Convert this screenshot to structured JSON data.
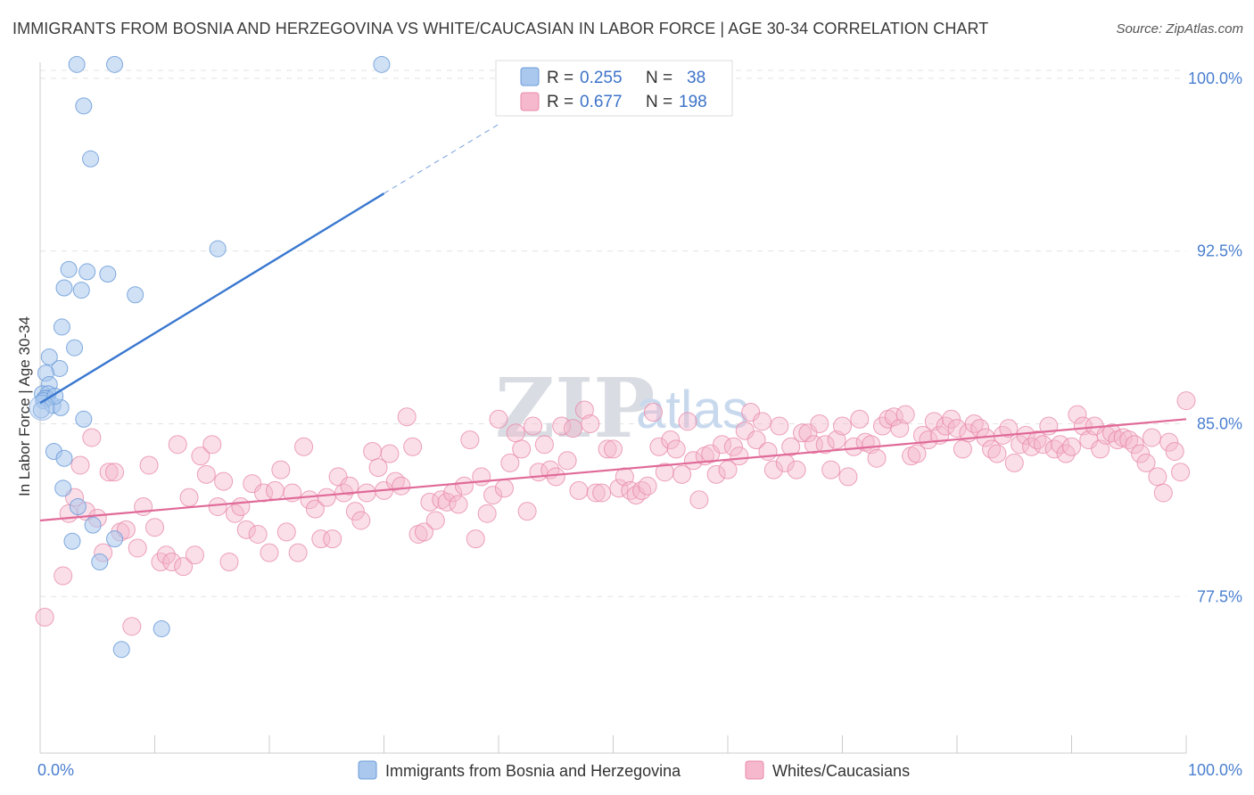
{
  "title": "IMMIGRANTS FROM BOSNIA AND HERZEGOVINA VS WHITE/CAUCASIAN IN LABOR FORCE | AGE 30-34 CORRELATION CHART",
  "source": "Source: ZipAtlas.com",
  "watermark": {
    "zip": "ZIP",
    "atlas": "atlas"
  },
  "legend": {
    "series1": {
      "r_label": "R =",
      "r_value": "0.255",
      "n_label": "N =",
      "n_value": "38"
    },
    "series2": {
      "r_label": "R =",
      "r_value": "0.677",
      "n_label": "N =",
      "n_value": "198"
    }
  },
  "colors": {
    "blue_fill": "#aac8ee",
    "blue_stroke": "#6b9bd8",
    "blue_line": "#3a78d0",
    "pink_fill": "#f5b8cc",
    "pink_stroke": "#e88aaa",
    "pink_line": "#e06a98",
    "grid": "#e3e3e3",
    "tick_text": "#4a7fd0"
  },
  "chart_data": {
    "type": "scatter",
    "title": "IMMIGRANTS FROM BOSNIA AND HERZEGOVINA VS WHITE/CAUCASIAN IN LABOR FORCE | AGE 30-34 CORRELATION CHART",
    "xlabel": "",
    "ylabel": "In Labor Force | Age 30-34",
    "xlim": [
      0,
      100
    ],
    "ylim": [
      70.7,
      101.0
    ],
    "x_tick_labels": [
      "0.0%",
      "100.0%"
    ],
    "y_ticks": [
      77.5,
      85.0,
      92.5,
      100.0
    ],
    "y_tick_labels": [
      "77.5%",
      "85.0%",
      "92.5%",
      "100.0%"
    ],
    "grid": true,
    "legend_position": "bottom-center",
    "series": [
      {
        "name": "Immigrants from Bosnia and Herzegovina",
        "color": "blue",
        "r": 0.255,
        "n": 38,
        "trend": {
          "x_start": 0,
          "y_start": 85.9,
          "x_end": 30,
          "y_end": 95.0,
          "dash_to_x": 40,
          "dash_to_y": 98.0
        },
        "points": [
          [
            3.2,
            100.6
          ],
          [
            6.5,
            100.6
          ],
          [
            29.8,
            100.6
          ],
          [
            3.8,
            98.8
          ],
          [
            4.4,
            96.5
          ],
          [
            15.5,
            92.6
          ],
          [
            2.5,
            91.7
          ],
          [
            4.1,
            91.6
          ],
          [
            5.9,
            91.5
          ],
          [
            2.1,
            90.9
          ],
          [
            3.6,
            90.8
          ],
          [
            8.3,
            90.6
          ],
          [
            1.9,
            89.2
          ],
          [
            3.0,
            88.3
          ],
          [
            0.8,
            87.9
          ],
          [
            1.7,
            87.4
          ],
          [
            0.5,
            87.2
          ],
          [
            0.8,
            86.7
          ],
          [
            0.2,
            86.3
          ],
          [
            0.7,
            86.3
          ],
          [
            0.6,
            86.1
          ],
          [
            0.4,
            86.1
          ],
          [
            0.3,
            86.0
          ],
          [
            1.1,
            85.8
          ],
          [
            1.8,
            85.7
          ],
          [
            3.8,
            85.2
          ],
          [
            1.2,
            83.8
          ],
          [
            2.1,
            83.5
          ],
          [
            2.0,
            82.2
          ],
          [
            3.3,
            81.4
          ],
          [
            4.6,
            80.6
          ],
          [
            2.8,
            79.9
          ],
          [
            6.5,
            80.0
          ],
          [
            5.2,
            79.0
          ],
          [
            10.6,
            76.1
          ],
          [
            7.1,
            75.2
          ],
          [
            0.1,
            85.6
          ],
          [
            1.3,
            86.2
          ]
        ]
      },
      {
        "name": "Whites/Caucasians",
        "color": "pink",
        "r": 0.677,
        "n": 198,
        "trend": {
          "x_start": 0,
          "y_start": 80.8,
          "x_end": 100,
          "y_end": 85.2
        },
        "points": [
          [
            0.4,
            76.6
          ],
          [
            2.0,
            78.4
          ],
          [
            2.5,
            81.1
          ],
          [
            3.0,
            81.8
          ],
          [
            3.5,
            83.2
          ],
          [
            4.0,
            81.2
          ],
          [
            4.5,
            84.4
          ],
          [
            5.0,
            80.9
          ],
          [
            5.5,
            79.4
          ],
          [
            6.0,
            82.9
          ],
          [
            6.5,
            82.9
          ],
          [
            7.0,
            80.3
          ],
          [
            7.5,
            80.4
          ],
          [
            8.0,
            76.2
          ],
          [
            8.5,
            79.6
          ],
          [
            9.0,
            81.4
          ],
          [
            9.5,
            83.2
          ],
          [
            10.0,
            80.5
          ],
          [
            10.5,
            79.0
          ],
          [
            11.0,
            79.3
          ],
          [
            11.5,
            79.0
          ],
          [
            12.0,
            84.1
          ],
          [
            12.5,
            78.8
          ],
          [
            13.0,
            81.8
          ],
          [
            13.5,
            79.3
          ],
          [
            14.0,
            83.6
          ],
          [
            14.5,
            82.8
          ],
          [
            15.0,
            84.1
          ],
          [
            15.5,
            81.4
          ],
          [
            16.0,
            82.5
          ],
          [
            16.5,
            79.0
          ],
          [
            17.0,
            81.1
          ],
          [
            17.5,
            81.4
          ],
          [
            18.0,
            80.4
          ],
          [
            18.5,
            82.4
          ],
          [
            19.0,
            80.2
          ],
          [
            19.5,
            82.0
          ],
          [
            20.0,
            79.4
          ],
          [
            20.5,
            82.1
          ],
          [
            21.0,
            83.0
          ],
          [
            21.5,
            80.3
          ],
          [
            22.0,
            82.0
          ],
          [
            22.5,
            79.4
          ],
          [
            23.0,
            84.0
          ],
          [
            23.5,
            81.7
          ],
          [
            24.0,
            81.3
          ],
          [
            24.5,
            80.0
          ],
          [
            25.0,
            81.8
          ],
          [
            25.5,
            80.0
          ],
          [
            26.0,
            82.7
          ],
          [
            26.5,
            82.0
          ],
          [
            27.0,
            82.3
          ],
          [
            27.5,
            81.2
          ],
          [
            28.0,
            80.8
          ],
          [
            28.5,
            82.0
          ],
          [
            29.0,
            83.8
          ],
          [
            29.5,
            83.1
          ],
          [
            30.0,
            82.1
          ],
          [
            30.5,
            83.7
          ],
          [
            31.0,
            82.5
          ],
          [
            31.5,
            82.3
          ],
          [
            32.0,
            85.3
          ],
          [
            32.5,
            84.0
          ],
          [
            33.0,
            80.2
          ],
          [
            33.5,
            80.3
          ],
          [
            34.0,
            81.6
          ],
          [
            34.5,
            80.8
          ],
          [
            35.0,
            81.7
          ],
          [
            35.5,
            81.6
          ],
          [
            36.0,
            82.0
          ],
          [
            36.5,
            81.5
          ],
          [
            37.0,
            82.3
          ],
          [
            37.5,
            84.3
          ],
          [
            38.0,
            80.0
          ],
          [
            38.5,
            82.7
          ],
          [
            39.0,
            81.1
          ],
          [
            39.5,
            81.9
          ],
          [
            40.0,
            85.2
          ],
          [
            40.5,
            82.2
          ],
          [
            41.0,
            83.3
          ],
          [
            41.5,
            84.6
          ],
          [
            42.0,
            83.9
          ],
          [
            42.5,
            81.2
          ],
          [
            43.0,
            84.9
          ],
          [
            43.5,
            82.9
          ],
          [
            44.0,
            84.1
          ],
          [
            44.5,
            83.0
          ],
          [
            45.0,
            82.7
          ],
          [
            45.5,
            84.9
          ],
          [
            46.0,
            83.4
          ],
          [
            46.5,
            84.8
          ],
          [
            47.0,
            82.1
          ],
          [
            47.5,
            85.6
          ],
          [
            48.0,
            85.0
          ],
          [
            48.5,
            82.0
          ],
          [
            49.0,
            82.0
          ],
          [
            49.5,
            83.9
          ],
          [
            50.0,
            83.9
          ],
          [
            50.5,
            82.2
          ],
          [
            51.0,
            82.7
          ],
          [
            51.5,
            82.1
          ],
          [
            52.0,
            81.9
          ],
          [
            52.5,
            82.1
          ],
          [
            53.0,
            82.3
          ],
          [
            53.5,
            85.5
          ],
          [
            54.0,
            84.0
          ],
          [
            54.5,
            82.9
          ],
          [
            55.0,
            84.3
          ],
          [
            55.5,
            83.9
          ],
          [
            56.0,
            82.8
          ],
          [
            56.5,
            85.1
          ],
          [
            57.0,
            83.4
          ],
          [
            57.5,
            81.7
          ],
          [
            58.0,
            83.6
          ],
          [
            58.5,
            83.7
          ],
          [
            59.0,
            82.8
          ],
          [
            59.5,
            84.1
          ],
          [
            60.0,
            83.0
          ],
          [
            60.5,
            84.0
          ],
          [
            61.0,
            83.6
          ],
          [
            61.5,
            84.7
          ],
          [
            62.0,
            85.5
          ],
          [
            62.5,
            84.3
          ],
          [
            63.0,
            85.1
          ],
          [
            63.5,
            83.8
          ],
          [
            64.0,
            83.0
          ],
          [
            64.5,
            84.9
          ],
          [
            65.0,
            83.3
          ],
          [
            65.5,
            84.0
          ],
          [
            66.0,
            83.0
          ],
          [
            66.5,
            84.6
          ],
          [
            67.0,
            84.6
          ],
          [
            67.5,
            84.1
          ],
          [
            68.0,
            85.0
          ],
          [
            68.5,
            84.1
          ],
          [
            69.0,
            83.0
          ],
          [
            69.5,
            84.3
          ],
          [
            70.0,
            84.9
          ],
          [
            70.5,
            82.7
          ],
          [
            71.0,
            84.0
          ],
          [
            71.5,
            85.2
          ],
          [
            72.0,
            84.2
          ],
          [
            72.5,
            84.1
          ],
          [
            73.0,
            83.5
          ],
          [
            73.5,
            84.9
          ],
          [
            74.0,
            85.2
          ],
          [
            74.5,
            85.3
          ],
          [
            75.0,
            84.8
          ],
          [
            75.5,
            85.4
          ],
          [
            76.0,
            83.6
          ],
          [
            76.5,
            83.7
          ],
          [
            77.0,
            84.5
          ],
          [
            77.5,
            84.3
          ],
          [
            78.0,
            85.1
          ],
          [
            78.5,
            84.5
          ],
          [
            79.0,
            84.9
          ],
          [
            79.5,
            85.2
          ],
          [
            80.0,
            84.8
          ],
          [
            80.5,
            83.9
          ],
          [
            81.0,
            84.6
          ],
          [
            81.5,
            85.0
          ],
          [
            82.0,
            84.8
          ],
          [
            82.5,
            84.4
          ],
          [
            83.0,
            83.9
          ],
          [
            83.5,
            83.7
          ],
          [
            84.0,
            84.5
          ],
          [
            84.5,
            84.8
          ],
          [
            85.0,
            83.3
          ],
          [
            85.5,
            84.1
          ],
          [
            86.0,
            84.5
          ],
          [
            86.5,
            84.0
          ],
          [
            87.0,
            84.3
          ],
          [
            87.5,
            84.1
          ],
          [
            88.0,
            84.9
          ],
          [
            88.5,
            83.9
          ],
          [
            89.0,
            84.1
          ],
          [
            89.5,
            83.7
          ],
          [
            90.0,
            84.0
          ],
          [
            90.5,
            85.4
          ],
          [
            91.0,
            84.9
          ],
          [
            91.5,
            84.3
          ],
          [
            92.0,
            84.9
          ],
          [
            92.5,
            83.9
          ],
          [
            93.0,
            84.5
          ],
          [
            93.5,
            84.6
          ],
          [
            94.0,
            84.3
          ],
          [
            94.5,
            84.4
          ],
          [
            95.0,
            84.3
          ],
          [
            95.5,
            84.1
          ],
          [
            96.0,
            83.7
          ],
          [
            96.5,
            83.3
          ],
          [
            97.0,
            84.4
          ],
          [
            97.5,
            82.7
          ],
          [
            98.0,
            82.0
          ],
          [
            98.5,
            84.2
          ],
          [
            99.0,
            83.8
          ],
          [
            99.5,
            82.9
          ],
          [
            100.0,
            86.0
          ]
        ]
      }
    ]
  },
  "bottom_legend": {
    "series1_label": "Immigrants from Bosnia and Herzegovina",
    "series2_label": "Whites/Caucasians"
  }
}
